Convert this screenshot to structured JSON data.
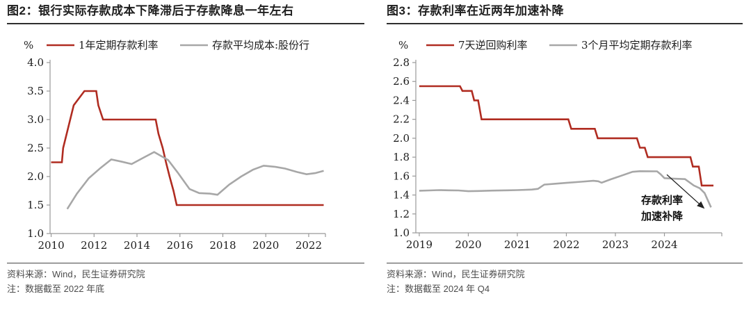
{
  "colors": {
    "red": "#b02c21",
    "gray": "#a7a7a7",
    "axis": "#999999",
    "title_text": "#1f1f1f",
    "footer_text": "#4c4c4c",
    "annotation": "#111111"
  },
  "panels": [
    {
      "title": "图2：银行实际存款成本下降滞后于存款降息一年左右",
      "source": "资料来源：Wind，民生证券研究院",
      "note": "注：数据截至 2022 年底"
    },
    {
      "title": "图3：存款利率在近两年加速补降",
      "source": "资料来源：Wind，民生证券研究院",
      "note": "注：数据截至 2024 年 Q4"
    }
  ],
  "chart_data": [
    {
      "type": "line",
      "title": "图2：银行实际存款成本下降滞后于存款降息一年左右",
      "unit": "%",
      "ylim": [
        1.0,
        4.0
      ],
      "xlim": [
        2009.95,
        2022.78
      ],
      "y_ticks": [
        1.0,
        1.5,
        2.0,
        2.5,
        3.0,
        3.5,
        4.0
      ],
      "x_ticks": [
        {
          "v": 2010,
          "label": "2010"
        },
        {
          "v": 2012,
          "label": "2012"
        },
        {
          "v": 2014,
          "label": "2014"
        },
        {
          "v": 2016,
          "label": "2016"
        },
        {
          "v": 2018,
          "label": "2018"
        },
        {
          "v": 2020,
          "label": "2020"
        },
        {
          "v": 2022,
          "label": "2022"
        },
        {
          "v": 2022.78,
          "label": ""
        }
      ],
      "grid": false,
      "legend_position": "top",
      "series": [
        {
          "name": "1年定期存款利率",
          "color": "red",
          "points": [
            [
              2010.0,
              2.25
            ],
            [
              2010.5,
              2.25
            ],
            [
              2010.56,
              2.5
            ],
            [
              2010.75,
              2.79
            ],
            [
              2011.05,
              3.25
            ],
            [
              2011.55,
              3.5
            ],
            [
              2012.1,
              3.5
            ],
            [
              2012.2,
              3.25
            ],
            [
              2012.42,
              3.0
            ],
            [
              2014.87,
              3.0
            ],
            [
              2015.0,
              2.75
            ],
            [
              2015.2,
              2.5
            ],
            [
              2015.35,
              2.25
            ],
            [
              2015.52,
              2.0
            ],
            [
              2015.7,
              1.75
            ],
            [
              2015.85,
              1.5
            ],
            [
              2022.7,
              1.5
            ]
          ]
        },
        {
          "name": "存款平均成本:股份行",
          "color": "gray",
          "points": [
            [
              2010.75,
              1.43
            ],
            [
              2011.2,
              1.7
            ],
            [
              2011.75,
              1.97
            ],
            [
              2012.3,
              2.15
            ],
            [
              2012.8,
              2.3
            ],
            [
              2013.3,
              2.26
            ],
            [
              2013.75,
              2.22
            ],
            [
              2014.3,
              2.33
            ],
            [
              2014.8,
              2.43
            ],
            [
              2015.45,
              2.29
            ],
            [
              2015.9,
              2.07
            ],
            [
              2016.45,
              1.78
            ],
            [
              2016.9,
              1.71
            ],
            [
              2017.4,
              1.7
            ],
            [
              2017.75,
              1.68
            ],
            [
              2018.3,
              1.86
            ],
            [
              2018.85,
              2.0
            ],
            [
              2019.4,
              2.12
            ],
            [
              2019.9,
              2.19
            ],
            [
              2020.45,
              2.17
            ],
            [
              2020.9,
              2.14
            ],
            [
              2021.45,
              2.08
            ],
            [
              2021.9,
              2.04
            ],
            [
              2022.3,
              2.06
            ],
            [
              2022.7,
              2.1
            ]
          ]
        }
      ]
    },
    {
      "type": "line",
      "title": "图3：存款利率在近两年加速补降",
      "unit": "%",
      "ylim": [
        1.0,
        2.8
      ],
      "xlim": [
        2018.93,
        2025.17
      ],
      "y_ticks": [
        1.0,
        1.2,
        1.4,
        1.6,
        1.8,
        2.0,
        2.2,
        2.4,
        2.6,
        2.8
      ],
      "x_ticks": [
        {
          "v": 2019,
          "label": "2019"
        },
        {
          "v": 2020,
          "label": "2020"
        },
        {
          "v": 2021,
          "label": "2021"
        },
        {
          "v": 2022,
          "label": "2022"
        },
        {
          "v": 2023,
          "label": "2023"
        },
        {
          "v": 2024,
          "label": "2024"
        },
        {
          "v": 2025.17,
          "label": ""
        }
      ],
      "grid": false,
      "legend_position": "top",
      "series": [
        {
          "name": "7天逆回购利率",
          "color": "red",
          "points": [
            [
              2019.0,
              2.55
            ],
            [
              2019.83,
              2.55
            ],
            [
              2019.88,
              2.5
            ],
            [
              2020.07,
              2.5
            ],
            [
              2020.12,
              2.4
            ],
            [
              2020.2,
              2.4
            ],
            [
              2020.27,
              2.2
            ],
            [
              2022.04,
              2.2
            ],
            [
              2022.1,
              2.1
            ],
            [
              2022.58,
              2.1
            ],
            [
              2022.64,
              2.0
            ],
            [
              2023.44,
              2.0
            ],
            [
              2023.5,
              1.9
            ],
            [
              2023.6,
              1.9
            ],
            [
              2023.66,
              1.8
            ],
            [
              2024.53,
              1.8
            ],
            [
              2024.58,
              1.7
            ],
            [
              2024.7,
              1.7
            ],
            [
              2024.76,
              1.5
            ],
            [
              2025.0,
              1.5
            ]
          ]
        },
        {
          "name": "3个月平均定期存款利率",
          "color": "gray",
          "points": [
            [
              2019.0,
              1.445
            ],
            [
              2019.2,
              1.448
            ],
            [
              2019.4,
              1.452
            ],
            [
              2019.6,
              1.45
            ],
            [
              2019.8,
              1.448
            ],
            [
              2020.0,
              1.44
            ],
            [
              2020.2,
              1.442
            ],
            [
              2020.5,
              1.447
            ],
            [
              2020.8,
              1.45
            ],
            [
              2021.0,
              1.452
            ],
            [
              2021.3,
              1.458
            ],
            [
              2021.42,
              1.465
            ],
            [
              2021.55,
              1.51
            ],
            [
              2021.8,
              1.52
            ],
            [
              2022.0,
              1.528
            ],
            [
              2022.3,
              1.54
            ],
            [
              2022.55,
              1.55
            ],
            [
              2022.65,
              1.545
            ],
            [
              2022.72,
              1.53
            ],
            [
              2022.9,
              1.565
            ],
            [
              2023.1,
              1.6
            ],
            [
              2023.35,
              1.645
            ],
            [
              2023.5,
              1.652
            ],
            [
              2023.85,
              1.65
            ],
            [
              2023.92,
              1.62
            ],
            [
              2024.0,
              1.578
            ],
            [
              2024.2,
              1.572
            ],
            [
              2024.42,
              1.568
            ],
            [
              2024.6,
              1.5
            ],
            [
              2024.72,
              1.472
            ],
            [
              2024.82,
              1.42
            ],
            [
              2024.95,
              1.27
            ]
          ]
        }
      ],
      "annotation": {
        "lines": [
          "存款利率",
          "加速补降"
        ],
        "x": 2023.95,
        "y_lines": [
          1.345,
          1.175
        ],
        "arrow": {
          "x1": 2024.05,
          "y1": 1.615,
          "x2": 2024.82,
          "y2": 1.255
        }
      }
    }
  ]
}
